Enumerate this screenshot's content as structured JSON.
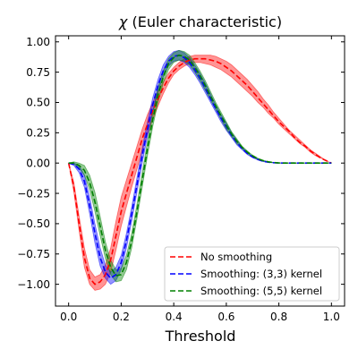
{
  "chart_data": {
    "type": "line",
    "title_symbol": "χ",
    "title_text": " (Euler characteristic)",
    "xlabel": "Threshold",
    "ylabel": "",
    "xlim": [
      -0.05,
      1.05
    ],
    "ylim": [
      -1.18,
      1.05
    ],
    "x_ticks": [
      0.0,
      0.2,
      0.4,
      0.6,
      0.8,
      1.0
    ],
    "x_tick_labels": [
      "0.0",
      "0.2",
      "0.4",
      "0.6",
      "0.8",
      "1.0"
    ],
    "y_ticks": [
      -1.0,
      -0.75,
      -0.5,
      -0.25,
      0.0,
      0.25,
      0.5,
      0.75,
      1.0
    ],
    "y_tick_labels": [
      "−1.00",
      "−0.75",
      "−0.50",
      "−0.25",
      "0.00",
      "0.25",
      "0.50",
      "0.75",
      "1.00"
    ],
    "grid": false,
    "legend_position": "lower-right",
    "x": [
      0.0,
      0.02,
      0.04,
      0.06,
      0.08,
      0.1,
      0.12,
      0.14,
      0.16,
      0.18,
      0.2,
      0.22,
      0.24,
      0.26,
      0.28,
      0.3,
      0.32,
      0.34,
      0.36,
      0.38,
      0.4,
      0.42,
      0.44,
      0.46,
      0.48,
      0.5,
      0.52,
      0.54,
      0.56,
      0.58,
      0.6,
      0.62,
      0.64,
      0.66,
      0.68,
      0.7,
      0.72,
      0.74,
      0.76,
      0.78,
      0.8,
      0.82,
      0.84,
      0.86,
      0.88,
      0.9,
      0.92,
      0.94,
      0.96,
      0.98,
      1.0
    ],
    "series": [
      {
        "name": "No smoothing",
        "color": "#ff0000",
        "mean": [
          0.0,
          -0.2,
          -0.5,
          -0.78,
          -0.95,
          -1.0,
          -0.98,
          -0.92,
          -0.8,
          -0.6,
          -0.4,
          -0.25,
          -0.1,
          0.05,
          0.2,
          0.32,
          0.43,
          0.53,
          0.62,
          0.7,
          0.76,
          0.8,
          0.83,
          0.85,
          0.86,
          0.86,
          0.86,
          0.85,
          0.84,
          0.82,
          0.79,
          0.76,
          0.72,
          0.68,
          0.64,
          0.59,
          0.54,
          0.49,
          0.44,
          0.39,
          0.34,
          0.3,
          0.26,
          0.21,
          0.17,
          0.14,
          0.1,
          0.07,
          0.04,
          0.02,
          0.0
        ],
        "lower": [
          0.0,
          -0.24,
          -0.56,
          -0.86,
          -1.0,
          -1.05,
          -1.04,
          -1.0,
          -0.9,
          -0.72,
          -0.52,
          -0.36,
          -0.2,
          -0.05,
          0.1,
          0.24,
          0.36,
          0.47,
          0.57,
          0.66,
          0.73,
          0.77,
          0.8,
          0.82,
          0.83,
          0.83,
          0.82,
          0.81,
          0.79,
          0.77,
          0.74,
          0.71,
          0.67,
          0.63,
          0.59,
          0.55,
          0.5,
          0.46,
          0.41,
          0.37,
          0.32,
          0.28,
          0.24,
          0.2,
          0.16,
          0.13,
          0.09,
          0.06,
          0.04,
          0.02,
          0.0
        ],
        "upper": [
          0.0,
          -0.16,
          -0.44,
          -0.7,
          -0.88,
          -0.94,
          -0.92,
          -0.84,
          -0.7,
          -0.48,
          -0.28,
          -0.14,
          0.0,
          0.14,
          0.28,
          0.4,
          0.5,
          0.59,
          0.67,
          0.74,
          0.79,
          0.83,
          0.86,
          0.88,
          0.89,
          0.89,
          0.89,
          0.89,
          0.88,
          0.86,
          0.84,
          0.81,
          0.77,
          0.73,
          0.69,
          0.64,
          0.59,
          0.53,
          0.48,
          0.42,
          0.37,
          0.32,
          0.27,
          0.23,
          0.19,
          0.15,
          0.11,
          0.08,
          0.05,
          0.02,
          0.0
        ]
      },
      {
        "name": "Smoothing: (3,3) kernel",
        "color": "#0000ff",
        "mean": [
          0.0,
          -0.01,
          -0.05,
          -0.15,
          -0.35,
          -0.58,
          -0.78,
          -0.9,
          -0.95,
          -0.92,
          -0.82,
          -0.64,
          -0.42,
          -0.18,
          0.06,
          0.28,
          0.48,
          0.64,
          0.76,
          0.84,
          0.88,
          0.89,
          0.87,
          0.83,
          0.77,
          0.7,
          0.62,
          0.53,
          0.45,
          0.37,
          0.3,
          0.23,
          0.17,
          0.12,
          0.08,
          0.05,
          0.03,
          0.015,
          0.007,
          0.003,
          0.001,
          0.0,
          0.0,
          0.0,
          0.0,
          0.0,
          0.0,
          0.0,
          0.0,
          0.0,
          0.0
        ],
        "lower": [
          0.0,
          -0.02,
          -0.08,
          -0.2,
          -0.42,
          -0.66,
          -0.85,
          -0.95,
          -1.0,
          -0.97,
          -0.88,
          -0.7,
          -0.48,
          -0.24,
          0.0,
          0.22,
          0.42,
          0.59,
          0.71,
          0.8,
          0.84,
          0.85,
          0.83,
          0.79,
          0.73,
          0.66,
          0.58,
          0.5,
          0.42,
          0.34,
          0.27,
          0.21,
          0.15,
          0.11,
          0.07,
          0.045,
          0.025,
          0.012,
          0.005,
          0.002,
          0.0,
          0.0,
          0.0,
          0.0,
          0.0,
          0.0,
          0.0,
          0.0,
          0.0,
          0.0,
          0.0
        ],
        "upper": [
          0.0,
          0.0,
          -0.02,
          -0.1,
          -0.28,
          -0.5,
          -0.7,
          -0.84,
          -0.9,
          -0.86,
          -0.76,
          -0.58,
          -0.36,
          -0.12,
          0.12,
          0.34,
          0.54,
          0.69,
          0.81,
          0.88,
          0.92,
          0.93,
          0.91,
          0.87,
          0.81,
          0.74,
          0.66,
          0.57,
          0.48,
          0.4,
          0.33,
          0.25,
          0.19,
          0.13,
          0.09,
          0.055,
          0.035,
          0.018,
          0.009,
          0.004,
          0.002,
          0.0,
          0.0,
          0.0,
          0.0,
          0.0,
          0.0,
          0.0,
          0.0,
          0.0,
          0.0
        ]
      },
      {
        "name": "Smoothing: (5,5) kernel",
        "color": "#008000",
        "mean": [
          0.0,
          0.0,
          -0.02,
          -0.06,
          -0.16,
          -0.32,
          -0.52,
          -0.72,
          -0.86,
          -0.93,
          -0.92,
          -0.82,
          -0.64,
          -0.4,
          -0.14,
          0.12,
          0.36,
          0.56,
          0.71,
          0.82,
          0.87,
          0.89,
          0.88,
          0.85,
          0.79,
          0.72,
          0.64,
          0.55,
          0.47,
          0.39,
          0.31,
          0.24,
          0.18,
          0.13,
          0.09,
          0.06,
          0.035,
          0.02,
          0.01,
          0.004,
          0.001,
          0.0,
          0.0,
          0.0,
          0.0,
          0.0,
          0.0,
          0.0,
          0.0,
          0.0,
          0.0
        ],
        "lower": [
          0.0,
          -0.01,
          -0.04,
          -0.1,
          -0.22,
          -0.4,
          -0.6,
          -0.79,
          -0.92,
          -0.98,
          -0.97,
          -0.88,
          -0.7,
          -0.46,
          -0.2,
          0.06,
          0.3,
          0.5,
          0.66,
          0.77,
          0.83,
          0.85,
          0.84,
          0.81,
          0.75,
          0.68,
          0.6,
          0.52,
          0.44,
          0.36,
          0.28,
          0.22,
          0.16,
          0.12,
          0.08,
          0.05,
          0.03,
          0.016,
          0.008,
          0.003,
          0.0,
          0.0,
          0.0,
          0.0,
          0.0,
          0.0,
          0.0,
          0.0,
          0.0,
          0.0,
          0.0
        ],
        "upper": [
          0.0,
          0.01,
          0.0,
          -0.02,
          -0.1,
          -0.24,
          -0.44,
          -0.65,
          -0.8,
          -0.88,
          -0.87,
          -0.76,
          -0.58,
          -0.34,
          -0.08,
          0.18,
          0.42,
          0.62,
          0.76,
          0.86,
          0.91,
          0.93,
          0.92,
          0.89,
          0.83,
          0.76,
          0.68,
          0.59,
          0.5,
          0.42,
          0.34,
          0.26,
          0.2,
          0.14,
          0.1,
          0.065,
          0.04,
          0.024,
          0.012,
          0.005,
          0.002,
          0.0,
          0.0,
          0.0,
          0.0,
          0.0,
          0.0,
          0.0,
          0.0,
          0.0,
          0.0
        ]
      }
    ]
  }
}
